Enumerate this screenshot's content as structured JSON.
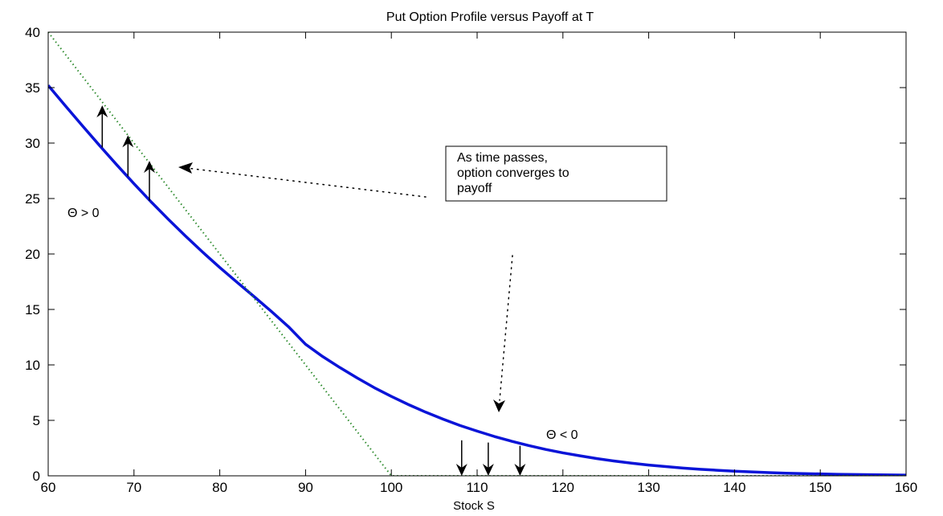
{
  "chart_data": {
    "type": "line",
    "title": "Put Option Profile versus Payoff at T",
    "xlabel": "Stock S",
    "ylabel": "",
    "xlim": [
      60,
      160
    ],
    "ylim": [
      0,
      40
    ],
    "xticks": [
      60,
      70,
      80,
      90,
      100,
      110,
      120,
      130,
      140,
      150,
      160
    ],
    "yticks": [
      0,
      5,
      10,
      15,
      20,
      25,
      30,
      35,
      40
    ],
    "grid": false,
    "colors": {
      "option": "#0a14d8",
      "payoff": "#2e8b2e",
      "text": "#000000"
    },
    "series": [
      {
        "style": "solid",
        "x": [
          60,
          62,
          64,
          66,
          68,
          70,
          72,
          74,
          76,
          78,
          80,
          82,
          84,
          86,
          88,
          90,
          92,
          94,
          96,
          98,
          100,
          102,
          104,
          106,
          108,
          110,
          112,
          114,
          116,
          118,
          120,
          122,
          124,
          126,
          128,
          130,
          132,
          134,
          136,
          138,
          140,
          142,
          144,
          146,
          148,
          150,
          152,
          154,
          156,
          158,
          160
        ],
        "y": [
          35.2,
          33.36,
          31.55,
          29.77,
          28.03,
          26.34,
          24.7,
          23.13,
          21.62,
          20.17,
          18.78,
          17.46,
          16.16,
          14.83,
          13.45,
          11.86,
          10.75,
          9.76,
          8.83,
          7.95,
          7.16,
          6.42,
          5.74,
          5.12,
          4.54,
          4.03,
          3.55,
          3.12,
          2.73,
          2.38,
          2.07,
          1.8,
          1.55,
          1.33,
          1.14,
          0.97,
          0.83,
          0.7,
          0.59,
          0.5,
          0.42,
          0.35,
          0.29,
          0.24,
          0.2,
          0.17,
          0.14,
          0.12,
          0.1,
          0.08,
          0.06
        ]
      },
      {
        "style": "dotted",
        "x": [
          60,
          100,
          160
        ],
        "y": [
          40,
          0,
          0
        ]
      }
    ],
    "annotations": {
      "box_lines": [
        "As time passes,",
        "option converges to",
        "payoff"
      ],
      "theta_positive": "Θ > 0",
      "theta_negative": "Θ < 0",
      "up_arrows": [
        {
          "x": 66.3,
          "y_from": 29.6,
          "y_to": 33.4
        },
        {
          "x": 69.3,
          "y_from": 27.0,
          "y_to": 30.7
        },
        {
          "x": 71.8,
          "y_from": 24.8,
          "y_to": 28.4
        }
      ],
      "down_arrows": [
        {
          "x": 108.2,
          "y_from": 3.2,
          "y_to": 0.0
        },
        {
          "x": 111.3,
          "y_from": 3.0,
          "y_to": 0.0
        },
        {
          "x": 115.0,
          "y_from": 2.7,
          "y_to": 0.0
        }
      ]
    }
  }
}
